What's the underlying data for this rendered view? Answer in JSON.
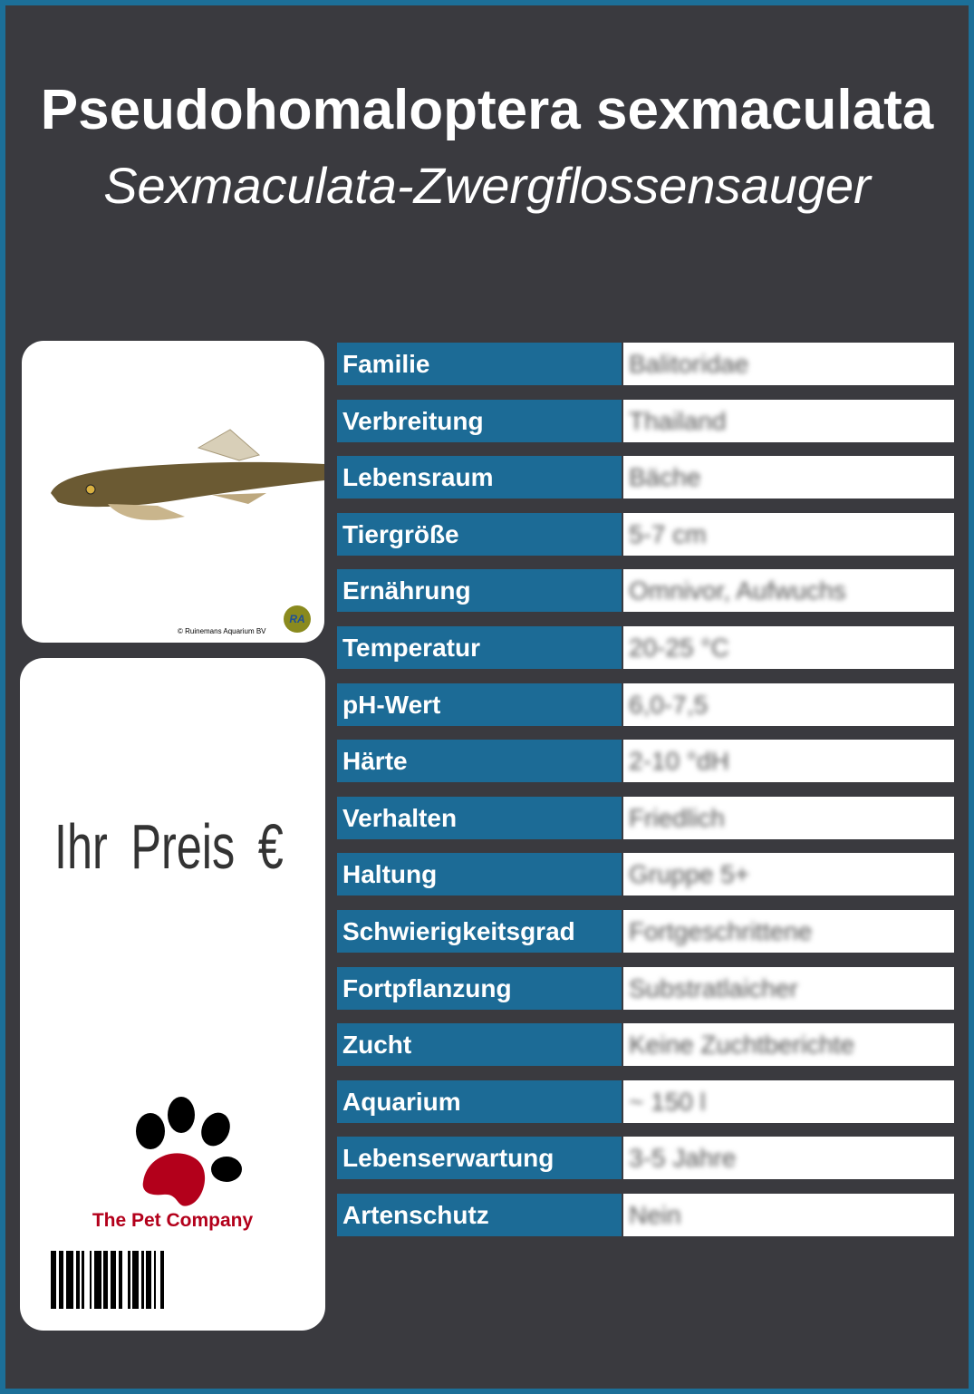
{
  "header": {
    "title": "Pseudohomaloptera sexmaculata",
    "subtitle": "Sexmaculata-Zwergflossensauger"
  },
  "photo": {
    "credit": "© Ruinemans Aquarium BV",
    "logo_text": "RA"
  },
  "price": {
    "label": "Ihr Preis €"
  },
  "brand": {
    "name": "The Pet Company"
  },
  "colors": {
    "background": "#3a3a3f",
    "accent": "#1c6b96",
    "brand": "#b3001b"
  },
  "table": [
    {
      "label": "Familie",
      "value": "Balitoridae"
    },
    {
      "label": "Verbreitung",
      "value": "Thailand"
    },
    {
      "label": "Lebensraum",
      "value": "Bäche"
    },
    {
      "label": "Tiergröße",
      "value": "5-7 cm"
    },
    {
      "label": "Ernährung",
      "value": "Omnivor, Aufwuchs"
    },
    {
      "label": "Temperatur",
      "value": "20-25 °C"
    },
    {
      "label": "pH-Wert",
      "value": "6,0-7,5"
    },
    {
      "label": "Härte",
      "value": "2-10 °dH"
    },
    {
      "label": "Verhalten",
      "value": "Friedlich"
    },
    {
      "label": "Haltung",
      "value": "Gruppe 5+"
    },
    {
      "label": "Schwierigkeitsgrad",
      "value": "Fortgeschrittene"
    },
    {
      "label": "Fortpflanzung",
      "value": "Substratlaicher"
    },
    {
      "label": "Zucht",
      "value": "Keine Zuchtberichte"
    },
    {
      "label": "Aquarium",
      "value": "~ 150 l"
    },
    {
      "label": "Lebenserwartung",
      "value": "3-5 Jahre"
    },
    {
      "label": "Artenschutz",
      "value": "Nein"
    }
  ]
}
